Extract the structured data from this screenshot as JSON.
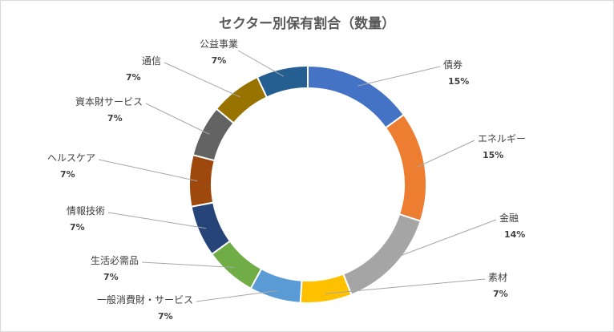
{
  "chart_data": {
    "type": "pie",
    "variant": "donut",
    "title": "セクター別保有割合（数量）",
    "categories": [
      "債券",
      "エネルギー",
      "金融",
      "素材",
      "一般消費財・サービス",
      "生活必需品",
      "情報技術",
      "ヘルスケア",
      "資本財サービス",
      "通信",
      "公益事業"
    ],
    "values": [
      15,
      15,
      14,
      7,
      7,
      7,
      7,
      7,
      7,
      7,
      7
    ],
    "value_labels": [
      "15%",
      "15%",
      "14%",
      "7%",
      "7%",
      "7%",
      "7%",
      "7%",
      "7%",
      "7%",
      "7%"
    ],
    "colors": [
      "#4472C4",
      "#ED7D31",
      "#A5A5A5",
      "#FFC000",
      "#5B9BD5",
      "#70AD47",
      "#264478",
      "#9E480E",
      "#636363",
      "#997300",
      "#255E91"
    ],
    "legend": "none",
    "data_labels": "outside-with-leader-lines"
  }
}
